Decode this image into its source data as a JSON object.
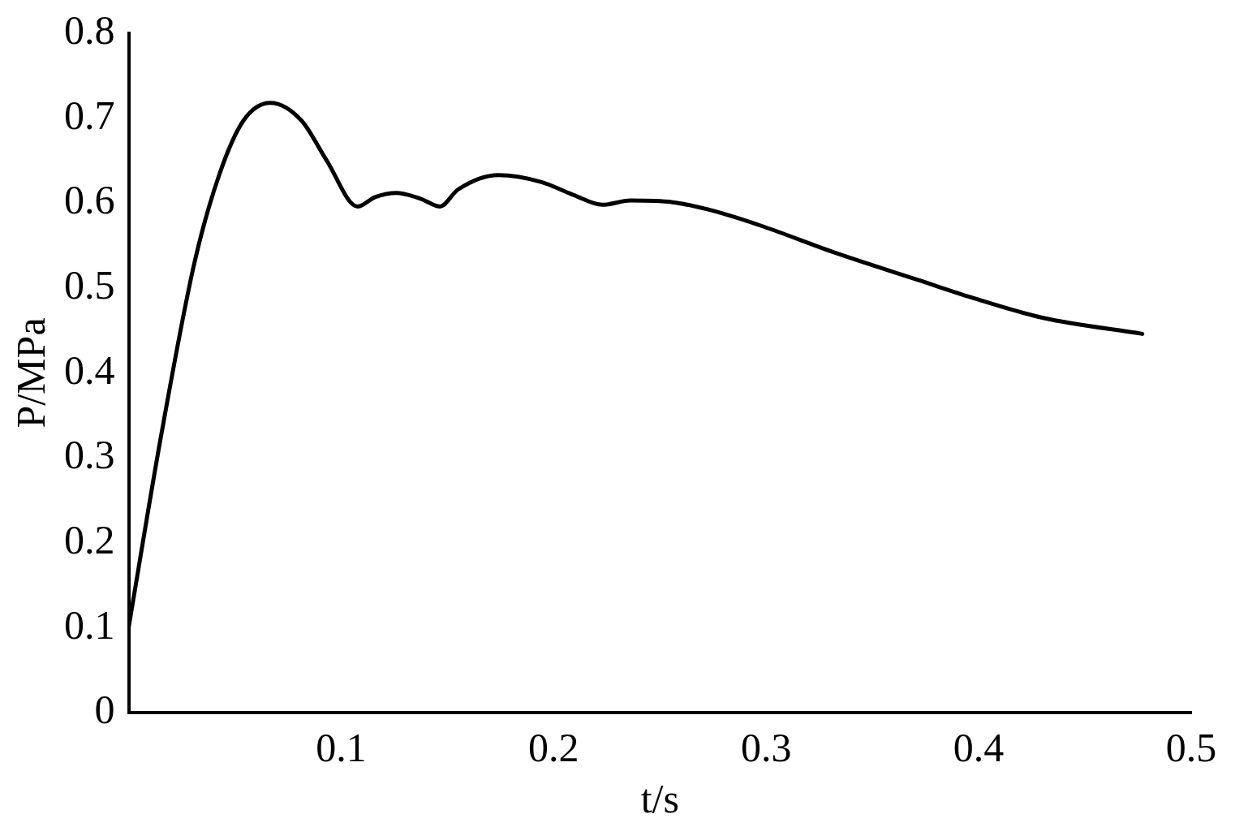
{
  "chart_data": {
    "type": "line",
    "xlabel": "t/s",
    "ylabel": "P/MPa",
    "x": [
      0,
      0.0155,
      0.031,
      0.0426,
      0.054,
      0.0667,
      0.0814,
      0.093,
      0.1078,
      0.116,
      0.126,
      0.1376,
      0.1465,
      0.155,
      0.174,
      0.194,
      0.209,
      0.223,
      0.236,
      0.256,
      0.275,
      0.298,
      0.333,
      0.372,
      0.399,
      0.43,
      0.477
    ],
    "series": [
      {
        "color": "#000000",
        "values": [
          0.1,
          0.329,
          0.53,
          0.633,
          0.697,
          0.718,
          0.697,
          0.651,
          0.596,
          0.607,
          0.612,
          0.605,
          0.596,
          0.616,
          0.633,
          0.625,
          0.61,
          0.598,
          0.603,
          0.601,
          0.591,
          0.573,
          0.541,
          0.509,
          0.487,
          0.465,
          0.446
        ]
      }
    ],
    "xlim": [
      0,
      0.5
    ],
    "xticks": [
      0.1,
      0.2,
      0.3,
      0.4,
      0.5
    ],
    "ylim": [
      0,
      0.8
    ],
    "yticks": [
      0,
      0.1,
      0.2,
      0.3,
      0.4,
      0.5,
      0.6,
      0.7,
      0.8
    ],
    "grid": false,
    "legend": false,
    "marker": "none",
    "line_style": "solid"
  }
}
